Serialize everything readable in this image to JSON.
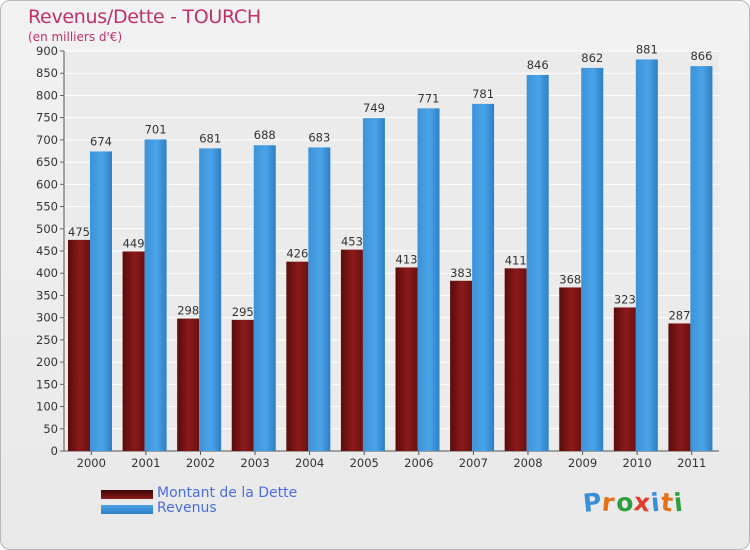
{
  "title": "Revenus/Dette - TOURCH",
  "subtitle": "(en milliers d'€)",
  "logo": {
    "text": "Proxiti",
    "letters": [
      "P",
      "r",
      "o",
      "x",
      "i",
      "t",
      "i"
    ],
    "colors": [
      "#3b8fd6",
      "#e2731b",
      "#2f9e3c",
      "#e23d2f",
      "#3b8fd6",
      "#e2731b",
      "#2f9e3c"
    ]
  },
  "colors": {
    "dette": "#8b1a1a",
    "revenus": "#4aa3e8",
    "title": "#c0306a",
    "legend_text": "#4a6ee0"
  },
  "chart_data": {
    "type": "bar",
    "title": "Revenus/Dette - TOURCH",
    "ylabel": "(en milliers d'€)",
    "categories": [
      "2000",
      "2001",
      "2002",
      "2003",
      "2004",
      "2005",
      "2006",
      "2007",
      "2008",
      "2009",
      "2010",
      "2011"
    ],
    "series": [
      {
        "name": "Montant de la Dette",
        "values": [
          475,
          449,
          298,
          295,
          426,
          453,
          413,
          383,
          411,
          368,
          323,
          287
        ]
      },
      {
        "name": "Revenus",
        "values": [
          674,
          701,
          681,
          688,
          683,
          749,
          771,
          781,
          846,
          862,
          881,
          866
        ]
      }
    ],
    "ylim": [
      0,
      900
    ],
    "ytick_step": 50,
    "grid": true,
    "legend": "bottom-left"
  }
}
